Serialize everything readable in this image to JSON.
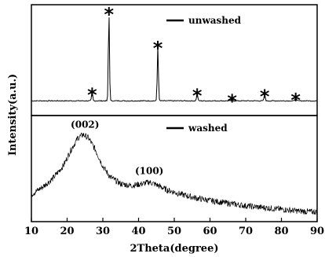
{
  "chart_data": {
    "type": "line",
    "xlabel": "2Theta(degree)",
    "ylabel": "Intensity(a.u.)",
    "xlim": [
      10,
      90
    ],
    "x_ticks": [
      "10",
      "20",
      "30",
      "40",
      "50",
      "60",
      "70",
      "80",
      "90"
    ],
    "panels": [
      {
        "legend": "unwashed",
        "legend_position": "top-center",
        "baseline": 0.05,
        "peaks": [
          {
            "x": 27.0,
            "height": 0.1,
            "marker": "*"
          },
          {
            "x": 31.7,
            "height": 1.0,
            "marker": "*"
          },
          {
            "x": 45.4,
            "height": 0.62,
            "marker": "*"
          },
          {
            "x": 56.4,
            "height": 0.09,
            "marker": "*"
          },
          {
            "x": 66.2,
            "height": 0.03,
            "marker": "*"
          },
          {
            "x": 75.3,
            "height": 0.08,
            "marker": "*"
          },
          {
            "x": 84.0,
            "height": 0.04,
            "marker": "*"
          }
        ]
      },
      {
        "legend": "washed",
        "legend_position": "top-center",
        "points": [
          [
            10,
            0.22
          ],
          [
            13,
            0.3
          ],
          [
            16,
            0.4
          ],
          [
            19,
            0.55
          ],
          [
            21,
            0.72
          ],
          [
            23,
            0.86
          ],
          [
            24.5,
            0.9
          ],
          [
            26,
            0.86
          ],
          [
            28,
            0.72
          ],
          [
            30,
            0.54
          ],
          [
            32,
            0.42
          ],
          [
            35,
            0.34
          ],
          [
            38,
            0.32
          ],
          [
            41,
            0.34
          ],
          [
            43,
            0.36
          ],
          [
            45,
            0.33
          ],
          [
            48,
            0.27
          ],
          [
            52,
            0.22
          ],
          [
            56,
            0.18
          ],
          [
            60,
            0.15
          ],
          [
            65,
            0.12
          ],
          [
            70,
            0.09
          ],
          [
            75,
            0.07
          ],
          [
            80,
            0.05
          ],
          [
            85,
            0.03
          ],
          [
            90,
            0.02
          ]
        ],
        "annotations": [
          {
            "text": "(002)",
            "x": 25
          },
          {
            "text": "(100)",
            "x": 43
          }
        ]
      }
    ]
  }
}
